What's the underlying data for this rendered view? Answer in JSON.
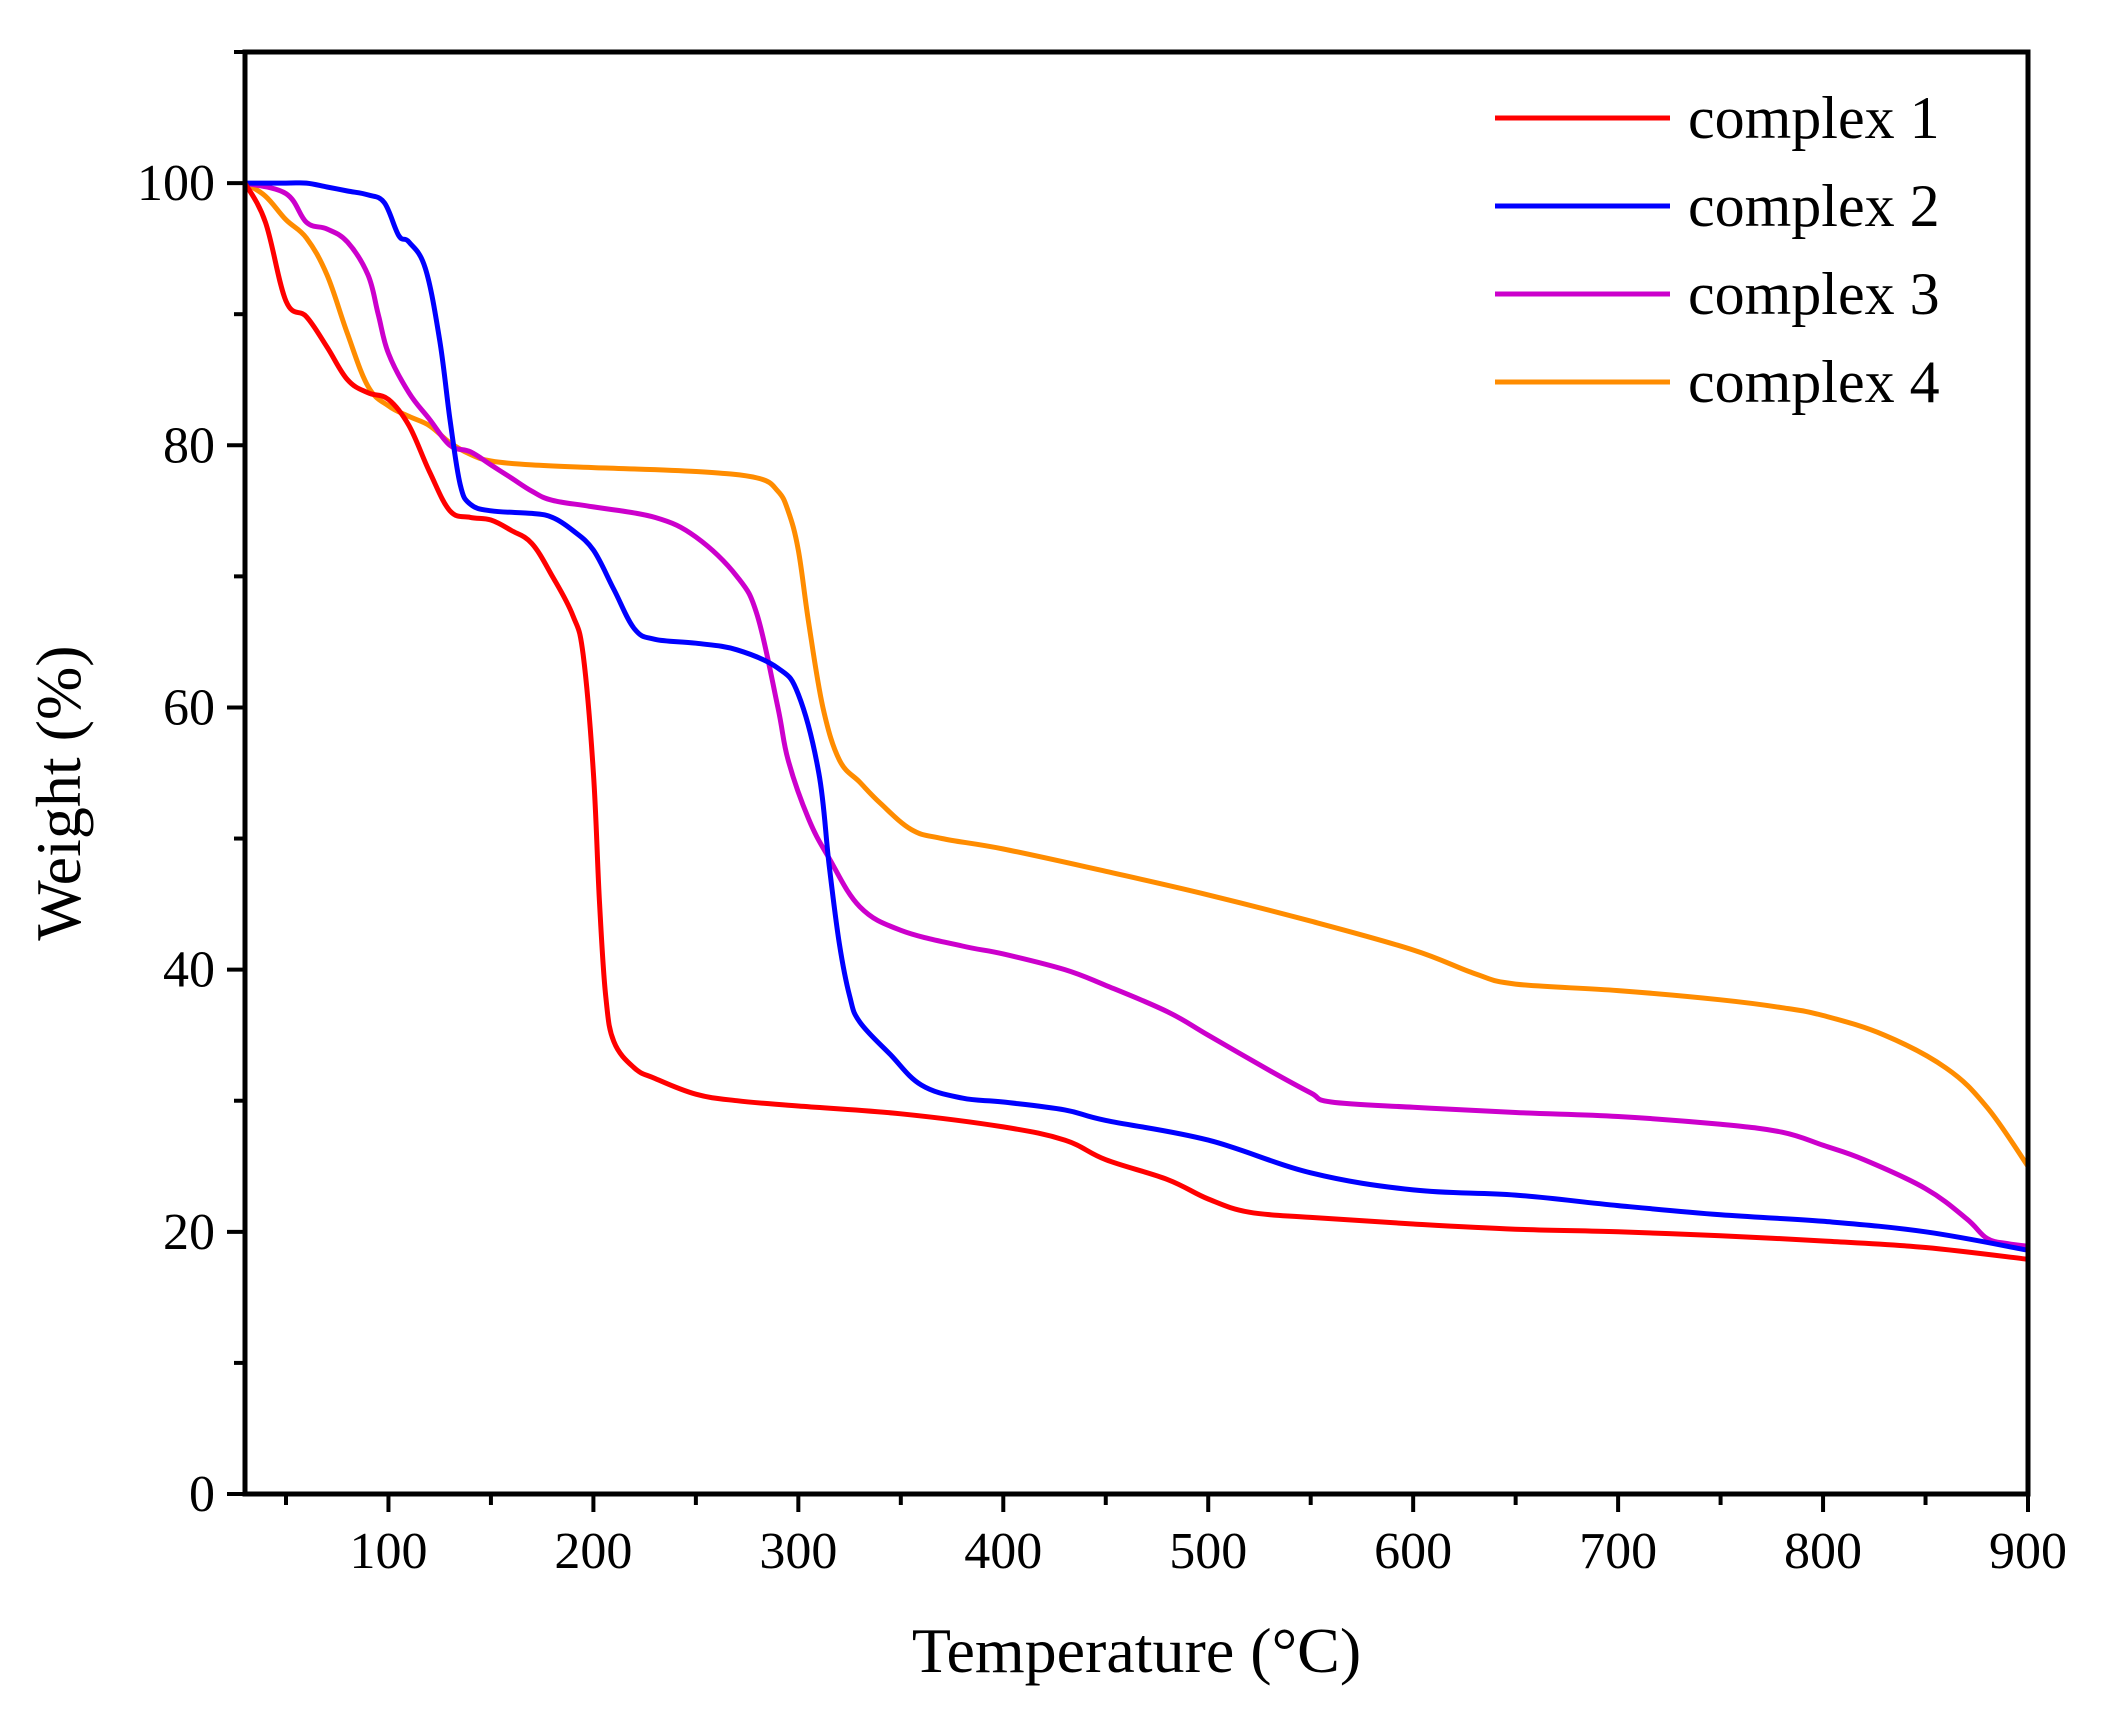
{
  "chart_data": {
    "type": "line",
    "title": "",
    "xlabel": "Temperature (°C)",
    "ylabel": "Weight (%)",
    "xlim": [
      30,
      900
    ],
    "ylim": [
      0,
      110
    ],
    "x_ticks": [
      100,
      200,
      300,
      400,
      500,
      600,
      700,
      800,
      900
    ],
    "y_ticks": [
      0,
      20,
      40,
      60,
      80,
      100
    ],
    "grid": false,
    "legend_position": "top-right",
    "series": [
      {
        "name": "complex 1",
        "color": "#ff0000",
        "points": [
          [
            30,
            100
          ],
          [
            40,
            97
          ],
          [
            50,
            91
          ],
          [
            60,
            89.8
          ],
          [
            70,
            87.5
          ],
          [
            80,
            85
          ],
          [
            90,
            84
          ],
          [
            100,
            83.5
          ],
          [
            110,
            81.5
          ],
          [
            120,
            78
          ],
          [
            130,
            75
          ],
          [
            140,
            74.5
          ],
          [
            150,
            74.3
          ],
          [
            160,
            73.5
          ],
          [
            170,
            72.5
          ],
          [
            180,
            70
          ],
          [
            190,
            67
          ],
          [
            195,
            64
          ],
          [
            200,
            55
          ],
          [
            203,
            45
          ],
          [
            206,
            38
          ],
          [
            210,
            34.5
          ],
          [
            220,
            32.5
          ],
          [
            230,
            31.7
          ],
          [
            250,
            30.5
          ],
          [
            270,
            30
          ],
          [
            300,
            29.6
          ],
          [
            350,
            29
          ],
          [
            400,
            28
          ],
          [
            430,
            27
          ],
          [
            450,
            25.5
          ],
          [
            480,
            24
          ],
          [
            500,
            22.5
          ],
          [
            520,
            21.5
          ],
          [
            550,
            21.1
          ],
          [
            600,
            20.6
          ],
          [
            650,
            20.2
          ],
          [
            700,
            20
          ],
          [
            750,
            19.7
          ],
          [
            800,
            19.3
          ],
          [
            850,
            18.8
          ],
          [
            900,
            17.9
          ]
        ]
      },
      {
        "name": "complex 2",
        "color": "#0000ff",
        "points": [
          [
            30,
            100
          ],
          [
            50,
            100
          ],
          [
            60,
            100
          ],
          [
            70,
            99.7
          ],
          [
            80,
            99.4
          ],
          [
            90,
            99.1
          ],
          [
            98,
            98.5
          ],
          [
            105,
            96
          ],
          [
            110,
            95.5
          ],
          [
            118,
            93.5
          ],
          [
            125,
            88
          ],
          [
            130,
            82
          ],
          [
            135,
            77
          ],
          [
            140,
            75.5
          ],
          [
            150,
            75
          ],
          [
            170,
            74.8
          ],
          [
            180,
            74.5
          ],
          [
            190,
            73.5
          ],
          [
            200,
            72
          ],
          [
            210,
            69
          ],
          [
            220,
            66
          ],
          [
            230,
            65.2
          ],
          [
            250,
            64.9
          ],
          [
            270,
            64.4
          ],
          [
            290,
            63
          ],
          [
            300,
            61
          ],
          [
            310,
            55
          ],
          [
            315,
            48
          ],
          [
            320,
            42
          ],
          [
            325,
            38
          ],
          [
            330,
            36
          ],
          [
            345,
            33.5
          ],
          [
            360,
            31.2
          ],
          [
            380,
            30.2
          ],
          [
            400,
            29.9
          ],
          [
            430,
            29.3
          ],
          [
            450,
            28.5
          ],
          [
            500,
            27
          ],
          [
            550,
            24.5
          ],
          [
            600,
            23.2
          ],
          [
            650,
            22.8
          ],
          [
            700,
            22
          ],
          [
            750,
            21.3
          ],
          [
            800,
            20.8
          ],
          [
            850,
            20
          ],
          [
            900,
            18.6
          ]
        ]
      },
      {
        "name": "complex 3",
        "color": "#cc00cc",
        "points": [
          [
            30,
            100
          ],
          [
            50,
            99.2
          ],
          [
            60,
            97
          ],
          [
            70,
            96.5
          ],
          [
            80,
            95.5
          ],
          [
            90,
            93
          ],
          [
            95,
            90
          ],
          [
            100,
            87
          ],
          [
            110,
            84
          ],
          [
            120,
            82
          ],
          [
            130,
            80
          ],
          [
            140,
            79.5
          ],
          [
            150,
            78.5
          ],
          [
            160,
            77.5
          ],
          [
            170,
            76.5
          ],
          [
            180,
            75.8
          ],
          [
            200,
            75.3
          ],
          [
            230,
            74.5
          ],
          [
            250,
            73
          ],
          [
            270,
            70
          ],
          [
            280,
            67
          ],
          [
            290,
            60
          ],
          [
            295,
            56
          ],
          [
            305,
            51.5
          ],
          [
            315,
            48.5
          ],
          [
            330,
            44.8
          ],
          [
            350,
            43
          ],
          [
            380,
            41.8
          ],
          [
            400,
            41.2
          ],
          [
            430,
            40
          ],
          [
            450,
            38.8
          ],
          [
            480,
            36.8
          ],
          [
            500,
            35
          ],
          [
            530,
            32.3
          ],
          [
            550,
            30.6
          ],
          [
            560,
            29.9
          ],
          [
            600,
            29.5
          ],
          [
            650,
            29.1
          ],
          [
            700,
            28.8
          ],
          [
            750,
            28.2
          ],
          [
            780,
            27.6
          ],
          [
            800,
            26.6
          ],
          [
            820,
            25.5
          ],
          [
            850,
            23.3
          ],
          [
            870,
            21
          ],
          [
            880,
            19.5
          ],
          [
            890,
            19.1
          ],
          [
            900,
            18.9
          ]
        ]
      },
      {
        "name": "complex 4",
        "color": "#ff8c00",
        "points": [
          [
            30,
            100
          ],
          [
            40,
            99
          ],
          [
            50,
            97.2
          ],
          [
            60,
            95.8
          ],
          [
            70,
            93
          ],
          [
            80,
            88.5
          ],
          [
            90,
            84.5
          ],
          [
            100,
            83
          ],
          [
            110,
            82.2
          ],
          [
            120,
            81.5
          ],
          [
            130,
            80.2
          ],
          [
            140,
            79.3
          ],
          [
            150,
            78.8
          ],
          [
            170,
            78.5
          ],
          [
            200,
            78.3
          ],
          [
            250,
            78
          ],
          [
            280,
            77.5
          ],
          [
            290,
            76.5
          ],
          [
            295,
            75
          ],
          [
            300,
            72
          ],
          [
            305,
            66.5
          ],
          [
            312,
            60
          ],
          [
            320,
            56
          ],
          [
            330,
            54.3
          ],
          [
            340,
            52.7
          ],
          [
            355,
            50.7
          ],
          [
            370,
            50
          ],
          [
            400,
            49.2
          ],
          [
            450,
            47.5
          ],
          [
            500,
            45.7
          ],
          [
            550,
            43.7
          ],
          [
            600,
            41.5
          ],
          [
            630,
            39.7
          ],
          [
            650,
            38.9
          ],
          [
            700,
            38.4
          ],
          [
            750,
            37.7
          ],
          [
            780,
            37.1
          ],
          [
            800,
            36.5
          ],
          [
            830,
            35
          ],
          [
            860,
            32.5
          ],
          [
            880,
            29.5
          ],
          [
            900,
            25
          ]
        ]
      }
    ]
  }
}
